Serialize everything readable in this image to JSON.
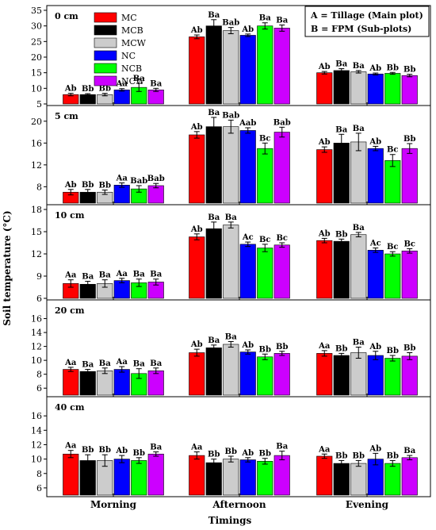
{
  "chart_data": {
    "type": "bar",
    "xlabel": "Timings",
    "ylabel": "Soil temperature (°C)",
    "categories": [
      "Morning",
      "Afternoon",
      "Evening"
    ],
    "note": [
      "A = Tillage (Main plot)",
      "B = FPM (Sub-plots)"
    ],
    "series": [
      {
        "name": "MC",
        "color": "#ff0000"
      },
      {
        "name": "MCB",
        "color": "#000000"
      },
      {
        "name": "MCW",
        "color": "#cccccc"
      },
      {
        "name": "NC",
        "color": "#0000ff"
      },
      {
        "name": "NCB",
        "color": "#00ff00"
      },
      {
        "name": "NCW",
        "color": "#cc00ff"
      }
    ],
    "panels": [
      {
        "label": "0 cm",
        "ylim": [
          5,
          35
        ],
        "yticks": [
          5,
          10,
          15,
          20,
          25,
          30,
          35
        ],
        "values": [
          [
            8.0,
            8.0,
            8.0,
            9.5,
            10.3,
            9.5
          ],
          [
            26.5,
            30.0,
            28.5,
            27.0,
            30.0,
            29.3
          ],
          [
            15.0,
            15.7,
            15.3,
            14.6,
            14.8,
            14.1
          ]
        ],
        "errors": [
          [
            0.4,
            0.3,
            0.4,
            0.4,
            1.3,
            0.5
          ],
          [
            0.6,
            2.0,
            1.0,
            0.4,
            1.0,
            1.0
          ],
          [
            0.4,
            0.6,
            0.4,
            0.3,
            0.3,
            0.4
          ]
        ],
        "labels": [
          [
            "Ab",
            "Bb",
            "Bb",
            "Aa",
            "Ba",
            "Ba"
          ],
          [
            "Ab",
            "Ba",
            "Bab",
            "Ab",
            "Ba",
            "Ba"
          ],
          [
            "Ab",
            "Ba",
            "Ba",
            "Ab",
            "Bb",
            "Bb"
          ]
        ]
      },
      {
        "label": "5 cm",
        "ylim": [
          5,
          22
        ],
        "yticks": [
          8,
          12,
          16,
          20
        ],
        "values": [
          [
            7.0,
            7.0,
            7.0,
            8.3,
            7.6,
            8.2
          ],
          [
            17.5,
            19.0,
            19.0,
            18.3,
            15.0,
            18.0
          ],
          [
            14.8,
            16.0,
            16.2,
            15.0,
            12.8,
            15.0
          ]
        ],
        "errors": [
          [
            0.5,
            0.5,
            0.4,
            0.4,
            0.6,
            0.4
          ],
          [
            0.6,
            1.7,
            1.2,
            0.5,
            1.0,
            0.9
          ],
          [
            0.5,
            1.6,
            1.6,
            0.4,
            1.1,
            0.9
          ]
        ],
        "labels": [
          [
            "Ab",
            "Bb",
            "Bb",
            "Aa",
            "Bab",
            "Bab"
          ],
          [
            "Ab",
            "Ba",
            "Bab",
            "Aab",
            "Bc",
            "Bab"
          ],
          [
            "Ab",
            "Ba",
            "Ba",
            "Ab",
            "Bc",
            "Bb"
          ]
        ]
      },
      {
        "label": "10 cm",
        "ylim": [
          6,
          18
        ],
        "yticks": [
          6,
          9,
          12,
          15,
          18
        ],
        "values": [
          [
            8.0,
            7.9,
            8.0,
            8.4,
            8.1,
            8.2
          ],
          [
            14.3,
            15.4,
            15.9,
            13.3,
            12.8,
            13.2
          ],
          [
            13.8,
            13.7,
            14.6,
            12.5,
            12.0,
            12.4
          ]
        ],
        "errors": [
          [
            0.5,
            0.4,
            0.5,
            0.3,
            0.5,
            0.4
          ],
          [
            0.4,
            0.9,
            0.4,
            0.3,
            0.5,
            0.3
          ],
          [
            0.3,
            0.3,
            0.3,
            0.3,
            0.3,
            0.3
          ]
        ],
        "labels": [
          [
            "Aa",
            "Ba",
            "Ba",
            "Aa",
            "Ba",
            "Ba"
          ],
          [
            "Ab",
            "Ba",
            "Ba",
            "Ac",
            "Bc",
            "Bc"
          ],
          [
            "Ab",
            "Bb",
            "Ba",
            "Ac",
            "Bc",
            "Bc"
          ]
        ]
      },
      {
        "label": "20 cm",
        "ylim": [
          5,
          18
        ],
        "yticks": [
          6,
          8,
          10,
          12,
          14,
          16
        ],
        "values": [
          [
            8.7,
            8.4,
            8.5,
            8.7,
            8.1,
            8.5
          ],
          [
            11.1,
            11.8,
            12.3,
            11.2,
            10.5,
            11.0
          ],
          [
            11.0,
            10.7,
            11.1,
            10.7,
            10.3,
            10.6
          ]
        ],
        "errors": [
          [
            0.3,
            0.3,
            0.4,
            0.4,
            0.7,
            0.4
          ],
          [
            0.5,
            0.4,
            0.4,
            0.3,
            0.4,
            0.3
          ],
          [
            0.4,
            0.3,
            0.8,
            0.6,
            0.4,
            0.5
          ]
        ],
        "labels": [
          [
            "Aa",
            "Ba",
            "Ba",
            "Aa",
            "Ba",
            "Ba"
          ],
          [
            "Ab",
            "Ba",
            "Ba",
            "Ab",
            "Bb",
            "Bb"
          ],
          [
            "Aa",
            "Bb",
            "Ba",
            "Ab",
            "Bb",
            "Bb"
          ]
        ]
      },
      {
        "label": "40 cm",
        "ylim": [
          5,
          18
        ],
        "yticks": [
          6,
          8,
          10,
          12,
          14,
          16
        ],
        "values": [
          [
            10.7,
            9.8,
            9.8,
            10.0,
            9.8,
            10.7
          ],
          [
            10.5,
            9.5,
            10.0,
            9.9,
            9.7,
            10.5
          ],
          [
            10.4,
            9.4,
            9.4,
            10.0,
            9.4,
            10.2
          ]
        ],
        "errors": [
          [
            0.5,
            0.8,
            0.8,
            0.5,
            0.4,
            0.3
          ],
          [
            0.5,
            0.5,
            0.4,
            0.3,
            0.4,
            0.6
          ],
          [
            0.3,
            0.4,
            0.4,
            0.8,
            0.4,
            0.3
          ]
        ],
        "labels": [
          [
            "Aa",
            "Bb",
            "Bb",
            "Ab",
            "Bb",
            "Ba"
          ],
          [
            "Aa",
            "Bb",
            "Bb",
            "Ab",
            "Bb",
            "Ba"
          ],
          [
            "Aa",
            "Bb",
            "Bb",
            "Ab",
            "Bb",
            "Ba"
          ]
        ]
      }
    ]
  }
}
